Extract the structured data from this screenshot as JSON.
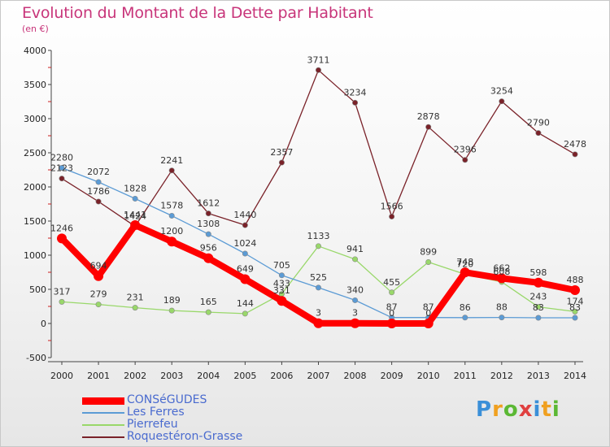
{
  "header": {
    "title": "Evolution du Montant de la Dette par Habitant",
    "subtitle": "(en €)"
  },
  "logo": {
    "text": "Proxiti",
    "colors": [
      "#3a8fd8",
      "#f0a020",
      "#5bb834",
      "#e04040",
      "#3a8fd8",
      "#f0a020",
      "#5bb834"
    ]
  },
  "chart_data": {
    "type": "line",
    "title": "Evolution du Montant de la Dette par Habitant",
    "subtitle": "(en €)",
    "xlabel": "",
    "ylabel": "",
    "x": [
      "2000",
      "2001",
      "2002",
      "2003",
      "2004",
      "2005",
      "2006",
      "2007",
      "2008",
      "2009",
      "2010",
      "2011",
      "2012",
      "2013",
      "2014"
    ],
    "ylim": [
      -500,
      4000
    ],
    "yticks": [
      -500,
      0,
      500,
      1000,
      1500,
      2000,
      2500,
      3000,
      3500,
      4000
    ],
    "grid": false,
    "legend_position": "bottom-left",
    "series": [
      {
        "name": "CONSéGUDES",
        "color": "#ff0000",
        "values": [
          1246,
          694,
          1441,
          1200,
          956,
          649,
          331,
          3,
          3,
          0,
          0,
          748,
          662,
          598,
          488
        ]
      },
      {
        "name": "Les Ferres",
        "color": "#5b9bd5",
        "values": [
          2280,
          2072,
          1828,
          1578,
          1308,
          1024,
          705,
          525,
          340,
          87,
          87,
          86,
          88,
          83,
          83
        ]
      },
      {
        "name": "Pierrefeu",
        "color": "#99d86a",
        "values": [
          317,
          279,
          231,
          189,
          165,
          144,
          433,
          1133,
          941,
          455,
          899,
          720,
          608,
          243,
          174
        ]
      },
      {
        "name": "Roquestéron-Grasse",
        "color": "#7a2229",
        "values": [
          2123,
          1786,
          1424,
          2241,
          1612,
          1440,
          2357,
          3711,
          3234,
          1566,
          2878,
          2396,
          3254,
          2790,
          2478
        ]
      }
    ]
  }
}
